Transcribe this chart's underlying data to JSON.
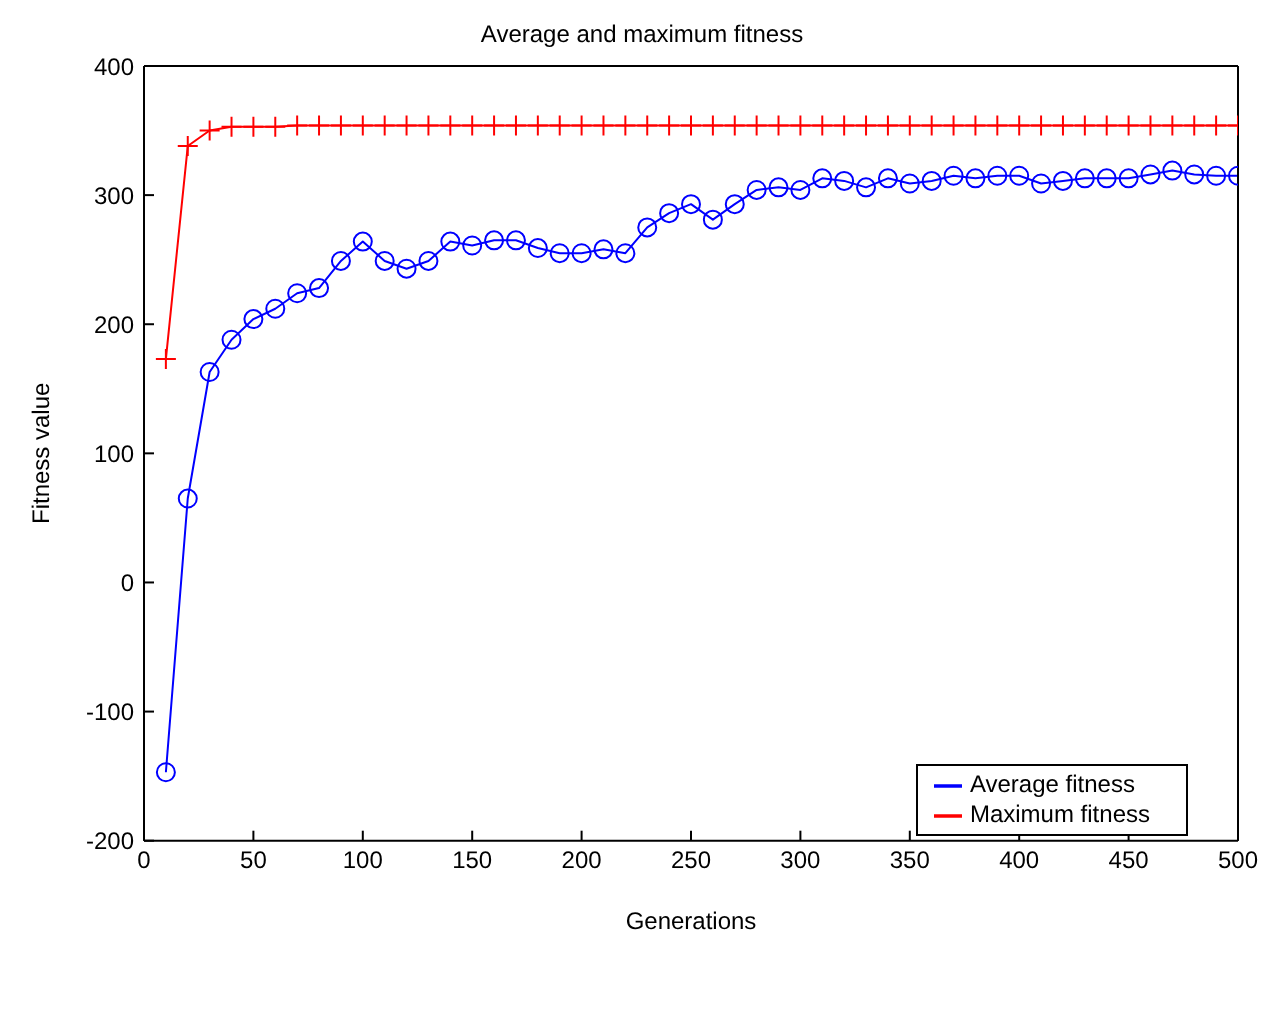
{
  "chart_data": {
    "type": "line",
    "title": "Average and maximum fitness",
    "xlabel": "Generations",
    "ylabel": "Fitness value",
    "x": [
      10,
      20,
      30,
      40,
      50,
      60,
      70,
      80,
      90,
      100,
      110,
      120,
      130,
      140,
      150,
      160,
      170,
      180,
      190,
      200,
      210,
      220,
      230,
      240,
      250,
      260,
      270,
      280,
      290,
      300,
      310,
      320,
      330,
      340,
      350,
      360,
      370,
      380,
      390,
      400,
      410,
      420,
      430,
      440,
      450,
      460,
      470,
      480,
      490,
      500
    ],
    "series": [
      {
        "name": "Average fitness",
        "color": "#0000ff",
        "marker": "circle",
        "values": [
          -147,
          65,
          163,
          188,
          204,
          212,
          224,
          228,
          249,
          264,
          249,
          243,
          249,
          264,
          261,
          265,
          265,
          259,
          255,
          255,
          258,
          255,
          275,
          286,
          293,
          281,
          293,
          304,
          306,
          304,
          313,
          311,
          306,
          313,
          309,
          311,
          315,
          313,
          315,
          315,
          309,
          311,
          313,
          313,
          313,
          316,
          319,
          316,
          315,
          315
        ]
      },
      {
        "name": "Maximum fitness",
        "color": "#ff0000",
        "marker": "cross",
        "values": [
          173,
          338,
          350,
          353,
          353,
          353,
          354,
          354,
          354,
          354,
          354,
          354,
          354,
          354,
          354,
          354,
          354,
          354,
          354,
          354,
          354,
          354,
          354,
          354,
          354,
          354,
          354,
          354,
          354,
          354,
          354,
          354,
          354,
          354,
          354,
          354,
          354,
          354,
          354,
          354,
          354,
          354,
          354,
          354,
          354,
          354,
          354,
          354,
          354,
          354
        ]
      }
    ],
    "xlim": [
      0,
      500
    ],
    "xticks": [
      0,
      50,
      100,
      150,
      200,
      250,
      300,
      350,
      400,
      450,
      500
    ],
    "ylim": [
      -200,
      400
    ],
    "yticks": [
      -200,
      -100,
      0,
      100,
      200,
      300,
      400
    ],
    "legend": "bottom right",
    "grid": false,
    "line_style": "solid"
  }
}
